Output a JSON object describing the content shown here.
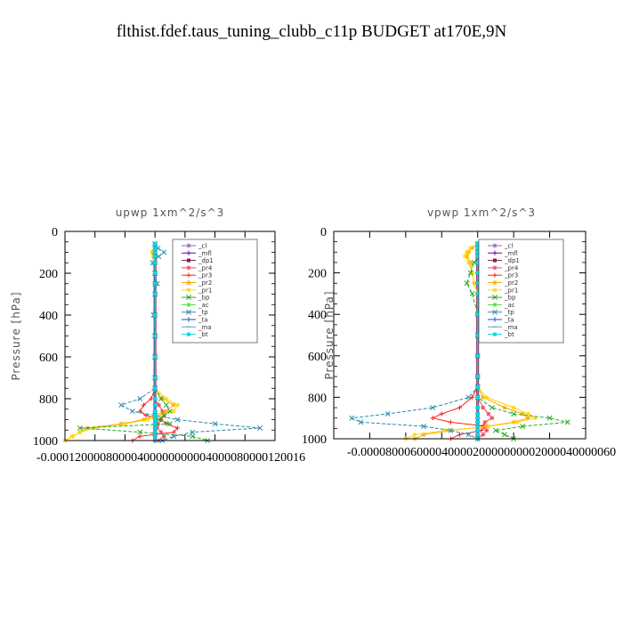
{
  "figure_title": "flthist.fdef.taus_tuning_clubb_c11p  BUDGET at170E,9N",
  "chart_data": [
    {
      "type": "line",
      "title": "upwp   1xm^2/s^3",
      "ylabel": "Pressure [hPa]",
      "xlabel": "",
      "xlim": [
        -0.00012,
        0.00016
      ],
      "ylim": [
        1000,
        0
      ],
      "y_ticks": [
        "0",
        "200",
        "400",
        "600",
        "800",
        "1000"
      ],
      "x_tick_labels": [
        "-0.00012",
        "-0.00008",
        "-0.00004",
        "0.00000",
        "0.00004",
        "0.00008",
        "0.00012",
        "0.00016"
      ],
      "x_ticks_rendered": "-0.00012000080000400000000004000080000120016",
      "legend": {
        "placement": "top-right"
      },
      "levels": [
        60,
        80,
        100,
        120,
        150,
        200,
        250,
        300,
        400,
        500,
        600,
        700,
        750,
        800,
        830,
        860,
        880,
        900,
        920,
        940,
        960,
        980,
        1000
      ],
      "series": [
        {
          "name": "_cl",
          "color": "#9b59d0",
          "marker": "star",
          "values": [
            0,
            0,
            0,
            0,
            0,
            0,
            0,
            0,
            0,
            0,
            0,
            0,
            0,
            0,
            0,
            0,
            0,
            0,
            0,
            0,
            0,
            0,
            0
          ]
        },
        {
          "name": "_mfl",
          "color": "#6a0dad",
          "marker": "plus",
          "values": [
            0,
            0,
            0,
            0,
            0,
            0,
            0,
            0,
            0,
            0,
            0,
            0,
            0,
            0,
            0,
            0,
            0,
            0,
            0,
            0,
            0,
            0,
            0
          ]
        },
        {
          "name": "_dp1",
          "color": "#8b1a4a",
          "marker": "square",
          "values": [
            0,
            0,
            0,
            0,
            0,
            0,
            0,
            0,
            0,
            0,
            0,
            0,
            0,
            0,
            0,
            0,
            0,
            0,
            0,
            0,
            0,
            0,
            0
          ]
        },
        {
          "name": "_pr4",
          "color": "#e8485a",
          "marker": "star",
          "values": [
            0,
            0,
            0,
            0,
            0,
            0,
            0,
            0,
            0,
            0,
            0,
            0,
            0,
            0,
            5e-06,
            1e-05,
            1.2e-05,
            8e-06,
            4e-06,
            3e-06,
            8e-06,
            1.2e-05,
            5e-06
          ]
        },
        {
          "name": "_pr3",
          "color": "#ff2020",
          "marker": "plus",
          "values": [
            0,
            0,
            0,
            0,
            0,
            0,
            0,
            0,
            0,
            0,
            0,
            0,
            0,
            -5e-06,
            -1.5e-05,
            -2e-05,
            -1.2e-05,
            8e-06,
            1.5e-05,
            3e-05,
            2.5e-05,
            -2e-05,
            -3e-05
          ]
        },
        {
          "name": "_pr2",
          "color": "#ffa500",
          "marker": "star",
          "values": [
            0,
            0,
            -3e-06,
            -2e-06,
            0,
            0,
            0,
            0,
            0,
            0,
            0,
            0,
            0,
            1e-05,
            2.5e-05,
            1.5e-05,
            0,
            -1.5e-05,
            -4.5e-05,
            -9e-05,
            -0.0001,
            -0.00011,
            -0.00012
          ]
        },
        {
          "name": "_pr1",
          "color": "#ffd700",
          "marker": "star",
          "values": [
            0,
            0,
            -4e-06,
            -2e-06,
            0,
            0,
            0,
            0,
            0,
            0,
            0,
            0,
            0,
            1.5e-05,
            3e-05,
            2.5e-05,
            8e-06,
            -1e-05,
            -4e-05,
            -8e-05,
            -0.0001,
            -0.00011,
            -0.00012
          ]
        },
        {
          "name": "_bp",
          "color": "#22aa22",
          "marker": "cross",
          "values": [
            0,
            0,
            0,
            0,
            0,
            0,
            0,
            0,
            0,
            0,
            0,
            0,
            0,
            8e-06,
            1.5e-05,
            2e-05,
            1.2e-05,
            5e-06,
            2e-05,
            -0.0001,
            -2e-05,
            5e-05,
            7e-05
          ]
        },
        {
          "name": "_ac",
          "color": "#44dd44",
          "marker": "star",
          "values": [
            0,
            0,
            0,
            0,
            0,
            0,
            0,
            0,
            0,
            0,
            0,
            0,
            0,
            0,
            0,
            0,
            0,
            0,
            0,
            0,
            0,
            0,
            0
          ]
        },
        {
          "name": "_tp",
          "color": "#2a8ab0",
          "marker": "cross",
          "values": [
            0,
            4e-06,
            1.2e-05,
            5e-06,
            -3e-06,
            0,
            3e-06,
            0,
            -2e-06,
            0,
            0,
            0,
            0,
            -2e-05,
            -4.5e-05,
            -3e-05,
            0,
            3e-05,
            8e-05,
            0.00014,
            5e-05,
            2.5e-05,
            1e-05
          ]
        },
        {
          "name": "_ta",
          "color": "#1f4fc8",
          "marker": "plus",
          "values": [
            0,
            0,
            0,
            0,
            0,
            0,
            0,
            0,
            0,
            0,
            0,
            0,
            0,
            0,
            0,
            0,
            0,
            0,
            0,
            0,
            0,
            0,
            0
          ]
        },
        {
          "name": "_ma",
          "color": "#6a9ee0",
          "marker": "dash",
          "values": [
            0,
            0,
            0,
            0,
            0,
            0,
            0,
            0,
            0,
            0,
            0,
            0,
            0,
            0,
            0,
            0,
            0,
            0,
            0,
            0,
            0,
            0,
            0
          ]
        },
        {
          "name": "_bt",
          "color": "#00d8e8",
          "marker": "square",
          "values": [
            0,
            0,
            0,
            0,
            0,
            0,
            0,
            0,
            0,
            0,
            0,
            0,
            0,
            0,
            0,
            0,
            0,
            0,
            0,
            0,
            0,
            0,
            0
          ]
        }
      ]
    },
    {
      "type": "line",
      "title": "vpwp   1xm^2/s^3",
      "ylabel": "Pressure [hPa]",
      "xlabel": "",
      "xlim": [
        -8e-05,
        6e-05
      ],
      "ylim": [
        1000,
        0
      ],
      "y_ticks": [
        "0",
        "200",
        "400",
        "600",
        "800",
        "1000"
      ],
      "x_tick_labels": [
        "-0.00008",
        "-0.00006",
        "-0.00004",
        "-0.00002",
        "0.00000",
        "0.00002",
        "0.00004",
        "0.00006"
      ],
      "x_ticks_rendered": "-0.00008000600004000020000000002000040000060",
      "legend": {
        "placement": "top-right"
      },
      "levels": [
        60,
        80,
        100,
        120,
        150,
        200,
        250,
        300,
        400,
        500,
        600,
        700,
        750,
        800,
        850,
        880,
        900,
        920,
        940,
        960,
        980,
        1000
      ],
      "series": [
        {
          "name": "_cl",
          "color": "#9b59d0",
          "marker": "star",
          "values": [
            0,
            0,
            0,
            0,
            0,
            0,
            0,
            0,
            0,
            0,
            0,
            0,
            0,
            0,
            0,
            0,
            0,
            0,
            0,
            0,
            0,
            0
          ]
        },
        {
          "name": "_mfl",
          "color": "#6a0dad",
          "marker": "plus",
          "values": [
            0,
            0,
            0,
            0,
            0,
            0,
            0,
            0,
            0,
            0,
            0,
            0,
            0,
            0,
            0,
            0,
            0,
            0,
            0,
            0,
            0,
            0
          ]
        },
        {
          "name": "_dp1",
          "color": "#8b1a4a",
          "marker": "square",
          "values": [
            0,
            0,
            0,
            0,
            0,
            0,
            0,
            0,
            0,
            0,
            0,
            0,
            0,
            0,
            0,
            0,
            0,
            0,
            0,
            0,
            0,
            0
          ]
        },
        {
          "name": "_pr4",
          "color": "#e8485a",
          "marker": "star",
          "values": [
            0,
            0,
            0,
            0,
            0,
            0,
            0,
            0,
            0,
            0,
            0,
            0,
            0,
            0,
            3e-06,
            6e-06,
            8e-06,
            4e-06,
            3e-06,
            5e-06,
            3e-06,
            0
          ]
        },
        {
          "name": "_pr3",
          "color": "#ff2020",
          "marker": "plus",
          "values": [
            0,
            0,
            0,
            0,
            0,
            0,
            0,
            0,
            0,
            0,
            0,
            0,
            0,
            -3e-06,
            -1e-05,
            -2e-05,
            -2.5e-05,
            -1.5e-05,
            5e-06,
            2e-06,
            -1e-05,
            -1.5e-05
          ]
        },
        {
          "name": "_pr2",
          "color": "#ffa500",
          "marker": "star",
          "values": [
            0,
            -3e-06,
            -5e-06,
            -6e-06,
            -4e-06,
            -3e-06,
            -2e-06,
            0,
            0,
            0,
            0,
            0,
            0,
            3e-06,
            1.5e-05,
            2.5e-05,
            2.8e-05,
            2e-05,
            5e-06,
            -1.5e-05,
            -3e-05,
            -3.5e-05
          ]
        },
        {
          "name": "_pr1",
          "color": "#ffd700",
          "marker": "star",
          "values": [
            0,
            -4e-06,
            -6e-06,
            -7e-06,
            -5e-06,
            -3e-06,
            -2e-06,
            0,
            0,
            0,
            0,
            0,
            0,
            5e-06,
            2e-05,
            2.8e-05,
            3.2e-05,
            2.2e-05,
            6e-06,
            -1.8e-05,
            -3.5e-05,
            -4e-05
          ]
        },
        {
          "name": "_bp",
          "color": "#22aa22",
          "marker": "cross",
          "values": [
            0,
            0,
            0,
            0,
            -2e-06,
            -4e-06,
            -6e-06,
            -3e-06,
            0,
            0,
            0,
            0,
            0,
            0,
            8e-06,
            2e-05,
            4e-05,
            5e-05,
            2.5e-05,
            1e-05,
            1.5e-05,
            2e-05
          ]
        },
        {
          "name": "_ac",
          "color": "#44dd44",
          "marker": "star",
          "values": [
            0,
            0,
            0,
            0,
            0,
            0,
            0,
            0,
            0,
            0,
            0,
            0,
            0,
            0,
            0,
            0,
            0,
            0,
            0,
            0,
            0,
            0
          ]
        },
        {
          "name": "_tp",
          "color": "#2a8ab0",
          "marker": "cross",
          "values": [
            0,
            3e-06,
            6e-06,
            4e-06,
            2e-06,
            3e-06,
            2e-06,
            1e-06,
            0,
            0,
            0,
            0,
            0,
            -5e-06,
            -2.5e-05,
            -5e-05,
            -7e-05,
            -6.5e-05,
            -3e-05,
            -1.5e-05,
            -5e-06,
            0
          ]
        },
        {
          "name": "_ta",
          "color": "#1f4fc8",
          "marker": "plus",
          "values": [
            0,
            0,
            0,
            0,
            0,
            0,
            0,
            0,
            0,
            0,
            0,
            0,
            0,
            0,
            0,
            0,
            0,
            0,
            0,
            0,
            0,
            0
          ]
        },
        {
          "name": "_ma",
          "color": "#6a9ee0",
          "marker": "dash",
          "values": [
            0,
            0,
            0,
            0,
            0,
            0,
            0,
            0,
            0,
            0,
            0,
            0,
            0,
            0,
            0,
            0,
            0,
            0,
            0,
            0,
            0,
            0
          ]
        },
        {
          "name": "_bt",
          "color": "#00d8e8",
          "marker": "square",
          "values": [
            0,
            0,
            0,
            0,
            0,
            0,
            0,
            0,
            0,
            0,
            0,
            0,
            0,
            0,
            0,
            0,
            0,
            0,
            0,
            0,
            0,
            0
          ]
        }
      ]
    }
  ]
}
